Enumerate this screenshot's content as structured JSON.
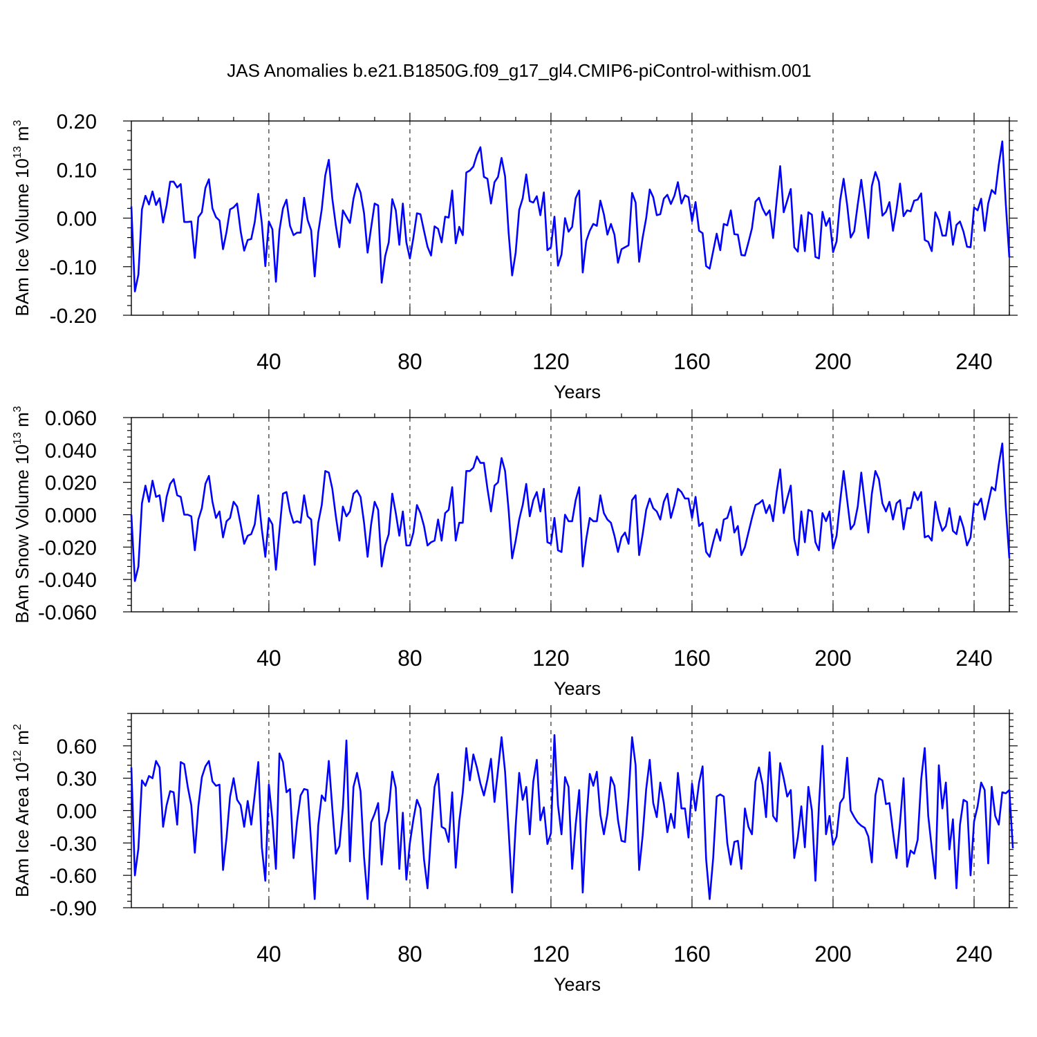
{
  "figure": {
    "title": "JAS Anomalies b.e21.B1850G.f09_g17_gl4.CMIP6-piControl-withism.001"
  },
  "chart_data": [
    {
      "type": "line",
      "xlabel": "Years",
      "ylabel": "BAm Ice Volume 10",
      "ylabel_exp": "13",
      "ylabel_unit": " m",
      "ylabel_unit_exp": "3",
      "xlim": [
        1,
        250
      ],
      "ylim": [
        -0.2,
        0.2
      ],
      "xticks": [
        40,
        80,
        120,
        160,
        200,
        240
      ],
      "yticks": [
        -0.2,
        -0.1,
        0.0,
        0.1,
        0.2
      ],
      "ytick_labels": [
        "-0.20",
        "-0.10",
        "0.00",
        "0.10",
        "0.20"
      ],
      "grid": "vertical dashed at major x ticks",
      "line_color": "#0000ff",
      "x_start": 1,
      "values": [
        0.024,
        -0.151,
        -0.116,
        0.018,
        0.046,
        0.028,
        0.055,
        0.027,
        0.041,
        -0.009,
        0.026,
        0.075,
        0.075,
        0.063,
        0.07,
        -0.008,
        -0.008,
        -0.007,
        -0.082,
        0.002,
        0.012,
        0.062,
        0.08,
        0.02,
        0.002,
        -0.005,
        -0.064,
        -0.028,
        0.018,
        0.022,
        0.03,
        -0.027,
        -0.067,
        -0.045,
        -0.043,
        -0.008,
        0.05,
        -0.01,
        -0.099,
        -0.007,
        -0.023,
        -0.131,
        -0.025,
        0.02,
        0.038,
        -0.016,
        -0.035,
        -0.03,
        -0.03,
        0.042,
        -0.004,
        -0.025,
        -0.12,
        -0.03,
        0.018,
        0.088,
        0.12,
        0.04,
        -0.015,
        -0.06,
        0.016,
        0.003,
        -0.01,
        0.04,
        0.071,
        0.053,
        0.01,
        -0.071,
        -0.02,
        0.03,
        0.026,
        -0.133,
        -0.078,
        -0.05,
        0.039,
        0.016,
        -0.055,
        0.03,
        -0.05,
        -0.083,
        -0.04,
        0.01,
        0.008,
        -0.026,
        -0.059,
        -0.077,
        -0.017,
        -0.022,
        -0.05,
        0.003,
        0.001,
        0.057,
        -0.052,
        -0.018,
        -0.035,
        0.094,
        0.098,
        0.106,
        0.13,
        0.146,
        0.085,
        0.081,
        0.03,
        0.074,
        0.085,
        0.124,
        0.086,
        -0.03,
        -0.118,
        -0.071,
        0.017,
        0.041,
        0.09,
        0.035,
        0.032,
        0.045,
        0.006,
        0.053,
        -0.066,
        -0.06,
        0.003,
        -0.098,
        -0.075,
        0.0,
        -0.028,
        -0.018,
        0.041,
        0.057,
        -0.112,
        -0.047,
        -0.026,
        -0.012,
        -0.016,
        0.036,
        0.008,
        -0.034,
        -0.012,
        -0.034,
        -0.092,
        -0.064,
        -0.06,
        -0.056,
        0.052,
        0.032,
        -0.09,
        -0.04,
        0.0,
        0.059,
        0.043,
        0.006,
        0.008,
        0.04,
        0.048,
        0.029,
        0.046,
        0.074,
        0.03,
        0.047,
        0.043,
        -0.006,
        0.033,
        -0.026,
        -0.031,
        -0.099,
        -0.104,
        -0.068,
        -0.032,
        -0.066,
        -0.012,
        -0.015,
        0.016,
        -0.033,
        -0.034,
        -0.076,
        -0.077,
        -0.05,
        -0.021,
        0.034,
        0.042,
        0.02,
        0.006,
        0.016,
        -0.041,
        0.036,
        0.107,
        0.012,
        0.036,
        0.06,
        -0.06,
        -0.069,
        0.006,
        -0.068,
        0.012,
        0.007,
        -0.08,
        -0.083,
        0.013,
        -0.016,
        0.0,
        -0.07,
        -0.048,
        0.036,
        0.081,
        0.027,
        -0.04,
        -0.027,
        0.028,
        0.079,
        0.021,
        -0.041,
        0.066,
        0.095,
        0.075,
        0.005,
        0.013,
        0.033,
        -0.026,
        0.018,
        0.071,
        0.004,
        0.016,
        0.014,
        0.036,
        0.038,
        0.051,
        -0.045,
        -0.049,
        -0.068,
        0.012,
        -0.004,
        -0.036,
        -0.036,
        0.013,
        -0.055,
        -0.014,
        -0.007,
        -0.028,
        -0.059,
        -0.06,
        0.022,
        0.016,
        0.04,
        -0.026,
        0.03,
        0.058,
        0.05,
        0.11,
        0.158,
        0.028,
        -0.081
      ]
    },
    {
      "type": "line",
      "xlabel": "Years",
      "ylabel": "BAm Snow Volume 10",
      "ylabel_exp": "13",
      "ylabel_unit": " m",
      "ylabel_unit_exp": "3",
      "xlim": [
        1,
        250
      ],
      "ylim": [
        -0.06,
        0.06
      ],
      "xticks": [
        40,
        80,
        120,
        160,
        200,
        240
      ],
      "yticks": [
        -0.06,
        -0.04,
        -0.02,
        0.0,
        0.02,
        0.04,
        0.06
      ],
      "ytick_labels": [
        "-0.060",
        "-0.040",
        "-0.020",
        "0.000",
        "0.020",
        "0.040",
        "0.060"
      ],
      "grid": "vertical dashed at major x ticks",
      "line_color": "#0000ff",
      "x_start": 1,
      "values": [
        -0.0,
        -0.041,
        -0.032,
        0.007,
        0.018,
        0.008,
        0.021,
        0.011,
        0.012,
        -0.004,
        0.011,
        0.019,
        0.022,
        0.012,
        0.011,
        0.0,
        0.0,
        -0.001,
        -0.022,
        -0.003,
        0.004,
        0.019,
        0.024,
        0.008,
        -0.002,
        0.002,
        -0.014,
        -0.004,
        -0.002,
        0.008,
        0.005,
        -0.006,
        -0.018,
        -0.013,
        -0.012,
        -0.006,
        0.012,
        -0.009,
        -0.026,
        -0.002,
        -0.006,
        -0.034,
        -0.01,
        0.013,
        0.014,
        0.002,
        -0.005,
        -0.004,
        -0.005,
        0.012,
        -0.001,
        -0.003,
        -0.031,
        -0.005,
        0.006,
        0.027,
        0.026,
        0.016,
        -0.001,
        -0.016,
        0.005,
        -0.001,
        0.002,
        0.013,
        0.015,
        0.011,
        -0.005,
        -0.026,
        -0.006,
        0.008,
        0.003,
        -0.032,
        -0.019,
        -0.012,
        0.013,
        0.001,
        -0.013,
        0.002,
        -0.019,
        -0.019,
        -0.011,
        0.006,
        0.001,
        -0.007,
        -0.019,
        -0.017,
        -0.016,
        -0.003,
        -0.016,
        0.001,
        0.003,
        0.017,
        -0.016,
        -0.005,
        -0.005,
        0.027,
        0.027,
        0.029,
        0.036,
        0.032,
        0.032,
        0.016,
        0.002,
        0.018,
        0.02,
        0.035,
        0.027,
        0.003,
        -0.027,
        -0.016,
        -0.003,
        0.006,
        0.019,
        -0.001,
        0.009,
        0.014,
        0.002,
        0.016,
        -0.017,
        -0.018,
        -0.002,
        -0.022,
        -0.023,
        0.0,
        -0.004,
        -0.004,
        0.009,
        0.017,
        -0.032,
        -0.015,
        -0.002,
        -0.004,
        -0.004,
        0.012,
        0.001,
        -0.003,
        -0.005,
        -0.013,
        -0.023,
        -0.014,
        -0.011,
        -0.018,
        0.009,
        0.012,
        -0.025,
        -0.012,
        0.003,
        0.01,
        0.004,
        0.002,
        -0.003,
        0.008,
        0.013,
        -0.002,
        0.006,
        0.016,
        0.014,
        0.01,
        0.01,
        -0.002,
        0.011,
        -0.007,
        -0.005,
        -0.023,
        -0.026,
        -0.017,
        -0.009,
        -0.016,
        -0.003,
        -0.002,
        0.005,
        -0.011,
        -0.007,
        -0.025,
        -0.02,
        -0.011,
        -0.002,
        0.006,
        0.007,
        0.009,
        0.001,
        0.006,
        -0.004,
        0.014,
        0.028,
        0.001,
        0.01,
        0.018,
        -0.015,
        -0.025,
        0.002,
        -0.017,
        0.003,
        0.002,
        -0.017,
        -0.022,
        0.001,
        -0.004,
        0.002,
        -0.021,
        -0.013,
        0.008,
        0.027,
        0.009,
        -0.009,
        -0.006,
        0.005,
        0.026,
        0.007,
        -0.011,
        0.013,
        0.027,
        0.022,
        0.007,
        0.002,
        0.008,
        -0.003,
        0.007,
        0.009,
        -0.009,
        0.004,
        0.004,
        0.014,
        0.009,
        0.014,
        -0.014,
        -0.013,
        -0.016,
        0.008,
        -0.003,
        -0.01,
        -0.007,
        0.004,
        -0.01,
        -0.012,
        -0.001,
        -0.008,
        -0.019,
        -0.014,
        0.007,
        0.006,
        0.01,
        -0.003,
        0.007,
        0.017,
        0.015,
        0.031,
        0.044,
        0.004,
        -0.027
      ]
    },
    {
      "type": "line",
      "xlabel": "Years",
      "ylabel": "BAm Ice Area 10",
      "ylabel_exp": "12",
      "ylabel_unit": " m",
      "ylabel_unit_exp": "2",
      "xlim": [
        1,
        250
      ],
      "ylim": [
        -0.9,
        0.9
      ],
      "xticks": [
        40,
        80,
        120,
        160,
        200,
        240
      ],
      "yticks": [
        -0.9,
        -0.6,
        -0.3,
        0.0,
        0.3,
        0.6
      ],
      "ytick_labels": [
        "-0.90",
        "-0.60",
        "-0.30",
        "0.00",
        "0.30",
        "0.60"
      ],
      "grid": "vertical dashed at major x ticks",
      "line_color": "#0000ff",
      "x_start": 1,
      "values": [
        0.4,
        -0.6,
        -0.35,
        0.28,
        0.23,
        0.32,
        0.3,
        0.46,
        0.4,
        -0.15,
        0.05,
        0.18,
        0.17,
        -0.13,
        0.45,
        0.43,
        0.22,
        0.05,
        -0.39,
        0.04,
        0.31,
        0.41,
        0.46,
        0.27,
        0.23,
        0.24,
        -0.55,
        -0.25,
        0.13,
        0.3,
        0.1,
        0.05,
        -0.15,
        0.09,
        -0.13,
        0.15,
        0.45,
        -0.34,
        -0.65,
        0.24,
        -0.08,
        -0.54,
        0.53,
        0.45,
        0.17,
        0.2,
        -0.44,
        -0.1,
        0.14,
        0.2,
        0.19,
        -0.3,
        -0.82,
        -0.14,
        0.14,
        0.09,
        0.46,
        0.02,
        -0.4,
        -0.33,
        0.03,
        0.65,
        -0.47,
        0.22,
        0.35,
        0.18,
        -0.43,
        -0.82,
        -0.11,
        -0.03,
        0.07,
        -0.5,
        -0.12,
        0.0,
        0.36,
        0.21,
        -0.54,
        -0.02,
        -0.64,
        -0.3,
        -0.08,
        0.1,
        0.02,
        -0.45,
        -0.72,
        -0.21,
        0.22,
        0.34,
        -0.15,
        -0.17,
        -0.29,
        0.17,
        -0.53,
        -0.1,
        0.17,
        0.58,
        0.28,
        0.52,
        0.4,
        0.25,
        0.14,
        0.29,
        0.48,
        0.08,
        0.38,
        0.68,
        0.36,
        -0.18,
        -0.76,
        -0.14,
        0.35,
        0.1,
        0.22,
        -0.22,
        0.27,
        0.47,
        -0.09,
        0.03,
        -0.31,
        -0.21,
        0.7,
        0.05,
        -0.22,
        0.31,
        0.22,
        -0.54,
        -0.13,
        0.19,
        -0.76,
        -0.11,
        0.34,
        0.23,
        0.36,
        -0.04,
        -0.22,
        -0.03,
        0.31,
        0.23,
        -0.09,
        -0.28,
        -0.29,
        0.13,
        0.68,
        0.42,
        -0.55,
        -0.23,
        0.2,
        0.47,
        0.07,
        -0.06,
        0.26,
        0.07,
        -0.2,
        -0.03,
        -0.16,
        0.35,
        0.02,
        0.02,
        -0.25,
        0.25,
        0.0,
        0.26,
        0.41,
        -0.45,
        -0.82,
        -0.44,
        0.13,
        0.15,
        0.13,
        -0.3,
        -0.5,
        -0.29,
        -0.28,
        -0.54,
        0.02,
        -0.15,
        -0.22,
        0.27,
        0.4,
        0.24,
        -0.06,
        0.54,
        -0.05,
        -0.1,
        0.44,
        0.3,
        0.13,
        0.19,
        -0.44,
        -0.25,
        0.04,
        -0.34,
        0.22,
        0.0,
        -0.65,
        0.05,
        0.6,
        -0.22,
        -0.05,
        -0.32,
        -0.24,
        0.07,
        0.12,
        0.49,
        0.0,
        -0.06,
        -0.11,
        -0.14,
        -0.16,
        -0.24,
        -0.48,
        0.14,
        0.3,
        0.28,
        0.06,
        0.07,
        -0.2,
        -0.44,
        -0.11,
        0.3,
        -0.52,
        -0.37,
        -0.4,
        -0.27,
        0.29,
        0.58,
        -0.05,
        -0.35,
        -0.63,
        0.42,
        0.02,
        0.26,
        -0.36,
        -0.08,
        -0.72,
        -0.13,
        0.1,
        0.08,
        -0.6,
        -0.1,
        0.04,
        0.26,
        0.19,
        -0.49,
        0.22,
        -0.05,
        -0.13,
        0.17,
        0.16,
        0.19,
        -0.35
      ]
    }
  ]
}
